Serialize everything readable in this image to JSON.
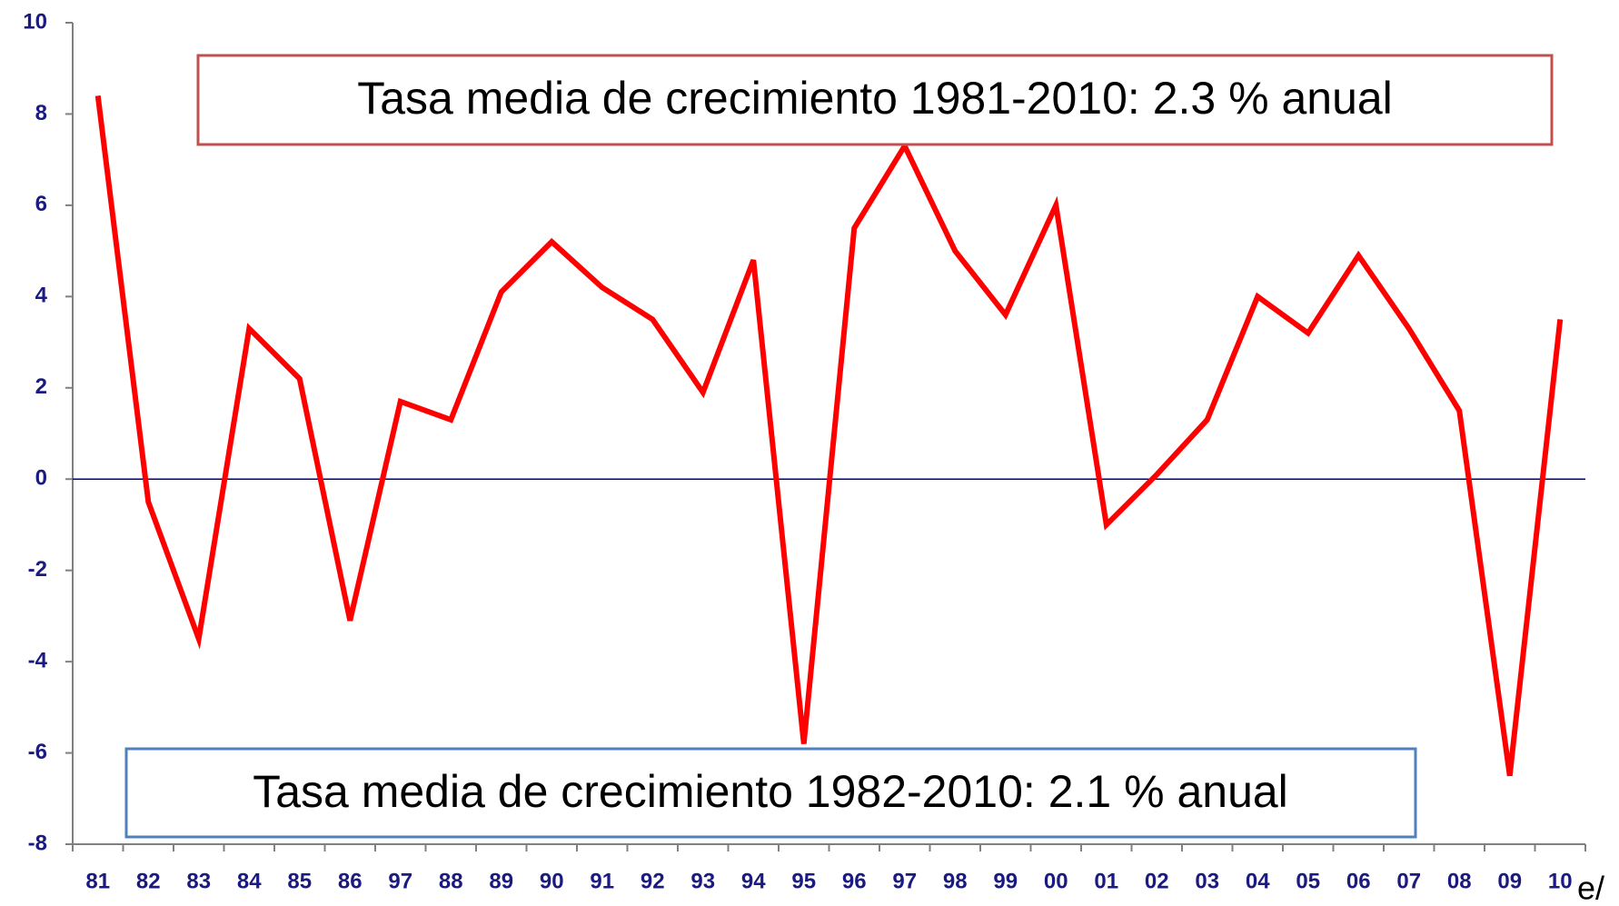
{
  "chart_data": {
    "type": "line",
    "annotations": [
      "Tasa media de crecimiento 1981-2010: 2.3 % anual",
      "Tasa media de crecimiento 1982-2010: 2.1 % anual"
    ],
    "note": "e/",
    "categories": [
      "81",
      "82",
      "83",
      "84",
      "85",
      "86",
      "97",
      "88",
      "89",
      "90",
      "91",
      "92",
      "93",
      "94",
      "95",
      "96",
      "97",
      "98",
      "99",
      "00",
      "01",
      "02",
      "03",
      "04",
      "05",
      "06",
      "07",
      "08",
      "09",
      "10"
    ],
    "series": [
      {
        "color": "#ff0000",
        "values": [
          8.4,
          -0.5,
          -3.5,
          3.3,
          2.2,
          -3.1,
          1.7,
          1.3,
          4.1,
          5.2,
          4.2,
          3.5,
          1.9,
          4.8,
          -5.8,
          5.5,
          7.3,
          5.0,
          3.6,
          6.0,
          -1.0,
          0.1,
          1.3,
          4.0,
          3.2,
          4.9,
          3.3,
          1.5,
          -6.5,
          3.5
        ]
      }
    ],
    "ylim": [
      -8,
      10
    ],
    "yticks": [
      -8,
      -6,
      -4,
      -2,
      0,
      2,
      4,
      6,
      8,
      10
    ]
  }
}
